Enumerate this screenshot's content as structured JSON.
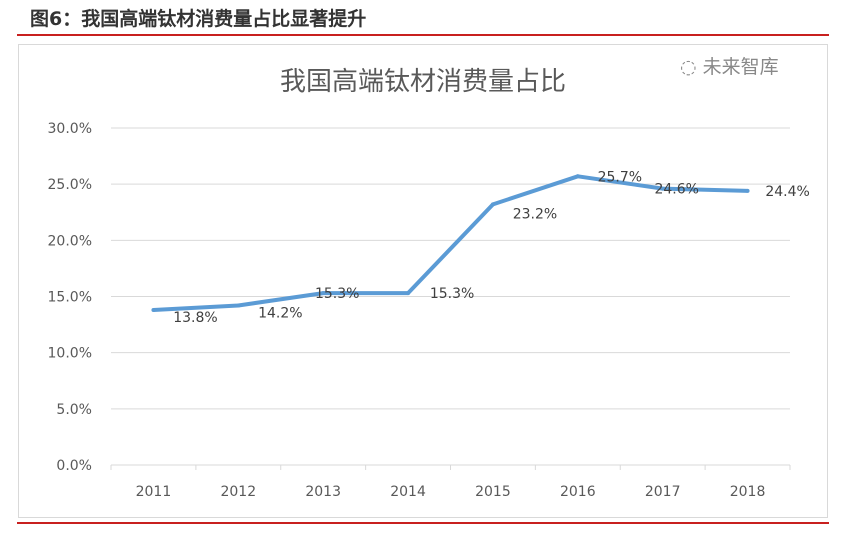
{
  "figure_title": "图6：我国高端钛材消费量占比显著提升",
  "watermark": "未来智库",
  "colors": {
    "line": "#5b9bd5",
    "rule": "#c8201f",
    "grid": "#d9d9d9"
  },
  "chart_data": {
    "type": "line",
    "title": "我国高端钛材消费量占比",
    "categories": [
      "2011",
      "2012",
      "2013",
      "2014",
      "2015",
      "2016",
      "2017",
      "2018"
    ],
    "series": [
      {
        "values": [
          13.8,
          14.2,
          15.3,
          15.3,
          23.2,
          25.7,
          24.6,
          24.4
        ]
      }
    ],
    "data_labels": [
      "13.8%",
      "14.2%",
      "15.3%",
      "15.3%",
      "23.2%",
      "25.7%",
      "24.6%",
      "24.4%"
    ],
    "yticks": [
      "0.0%",
      "5.0%",
      "10.0%",
      "15.0%",
      "20.0%",
      "25.0%",
      "30.0%"
    ],
    "ylim": [
      0,
      30
    ],
    "grid": true,
    "legend": "none"
  }
}
